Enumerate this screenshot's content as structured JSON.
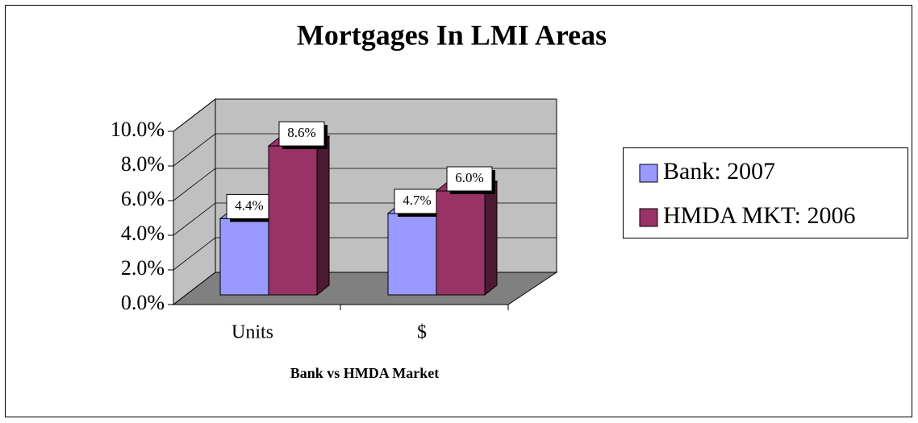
{
  "chart_data": {
    "type": "bar",
    "title": "Mortgages In LMI Areas",
    "x_label": "Bank vs HMDA Market",
    "categories": [
      "Units",
      "$"
    ],
    "series": [
      {
        "name": "Bank: 2007",
        "color": "#9999ff",
        "side": "#6b6bb3",
        "values": [
          4.4,
          4.7
        ],
        "value_labels": [
          "4.4%",
          "4.7%"
        ]
      },
      {
        "name": "HMDA MKT: 2006",
        "color": "#993366",
        "side": "#4d1a33",
        "values": [
          8.6,
          6.0
        ],
        "value_labels": [
          "8.6%",
          "6.0%"
        ]
      }
    ],
    "ylim": [
      0,
      10
    ],
    "yticks": [
      {
        "value": 0,
        "label": "0.0%"
      },
      {
        "value": 2,
        "label": "2.0%"
      },
      {
        "value": 4,
        "label": "4.0%"
      },
      {
        "value": 6,
        "label": "6.0%"
      },
      {
        "value": 8,
        "label": "8.0%"
      },
      {
        "value": 10,
        "label": "10.0%"
      }
    ],
    "grid": true,
    "legend": "right"
  }
}
